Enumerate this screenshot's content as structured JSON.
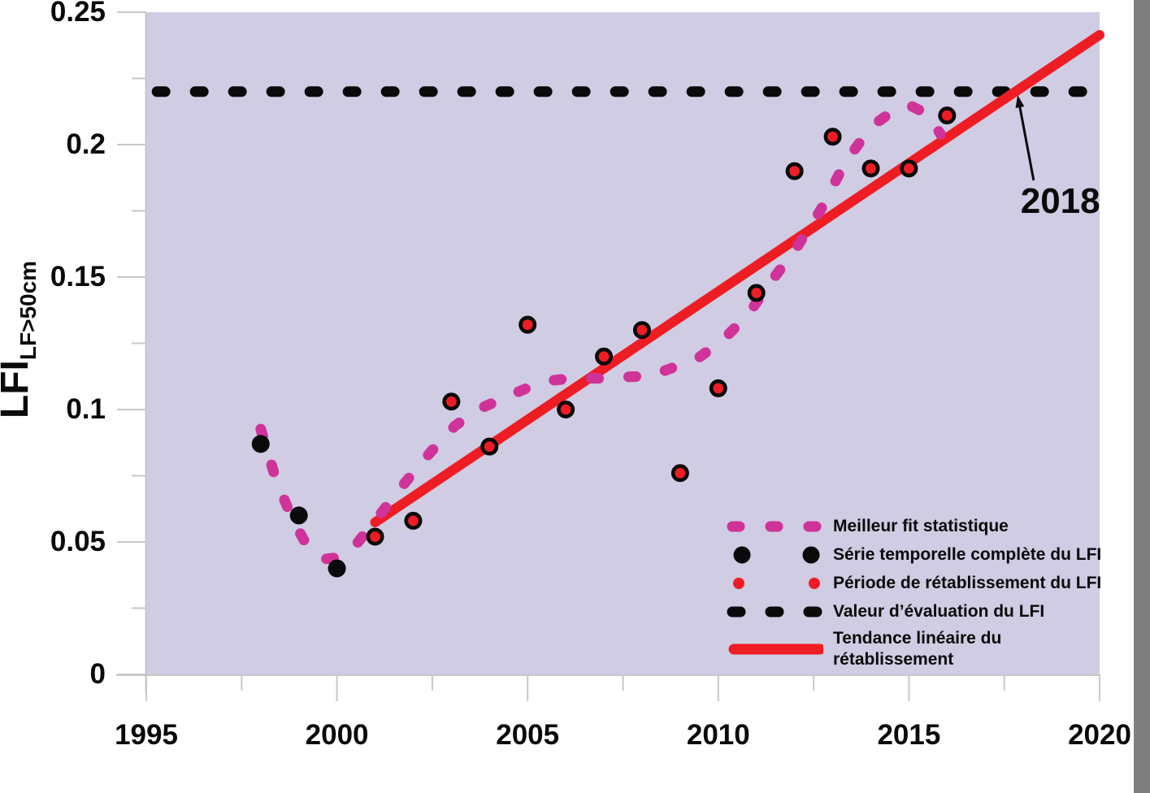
{
  "figure": {
    "background": "#FFFFFF",
    "plot_bg": "#CFCCE3",
    "axis_color": "#C9C7C7",
    "text_color": "#0A0A0A",
    "right_bar_color": "#7F7F7F",
    "accent_red": "#EE1D23",
    "accent_magenta": "#CF3399"
  },
  "legend": {
    "items": [
      {
        "label": "Meilleur fit statistique",
        "marker": "dashed-line",
        "color": "#CF3399"
      },
      {
        "label": "Série temporelle complète du LFI",
        "marker": "large-dots",
        "color": "#0A0A0A"
      },
      {
        "label": "Période de rétablissement du LFI",
        "marker": "small-dots",
        "color": "#EE1D23"
      },
      {
        "label": "Valeur d’évaluation du LFI",
        "marker": "dashed-line",
        "color": "#0A0A0A"
      },
      {
        "label": "Tendance linéaire du rétablissement",
        "line1": "Tendance linéaire du",
        "line2": "rétablissement",
        "marker": "solid-line",
        "color": "#EE1D23"
      }
    ]
  },
  "chart_data": {
    "type": "scatter",
    "title": "",
    "xlabel": "",
    "ylabel": "LFI LF>50cm",
    "grid": false,
    "legend_position": "inside-lower-right",
    "x_axis": {
      "range": [
        1995,
        2020
      ],
      "ticks": [
        {
          "label": "1995",
          "value": 1995
        },
        {
          "label": "2000",
          "value": 2000
        },
        {
          "label": "2005",
          "value": 2005
        },
        {
          "label": "2010",
          "value": 2010
        },
        {
          "label": "2015",
          "value": 2015
        },
        {
          "label": "2020",
          "value": 2020
        }
      ],
      "minor_ticks": [
        1997.5,
        2002.5,
        2007.5,
        2012.5,
        2017.5
      ]
    },
    "y_axis": {
      "title": "LFI",
      "subscript": "LF>50cm",
      "range": [
        0,
        0.25
      ],
      "ticks": [
        {
          "label": "0",
          "value": 0
        },
        {
          "label": "0.05",
          "value": 0.05
        },
        {
          "label": "0.1",
          "value": 0.1
        },
        {
          "label": "0.15",
          "value": 0.15
        },
        {
          "label": "0.2",
          "value": 0.2
        },
        {
          "label": "0.25",
          "value": 0.25
        }
      ],
      "minor_ticks": [
        0.025,
        0.075,
        0.125,
        0.175,
        0.225
      ]
    },
    "series": [
      {
        "name": "Série temporelle complète du LFI",
        "type": "scatter",
        "marker": "filled-circle",
        "color": "#0A0A0A",
        "x": [
          1998,
          1999,
          2000
        ],
        "y": [
          0.087,
          0.06,
          0.04
        ]
      },
      {
        "name": "Période de rétablissement du LFI",
        "type": "scatter",
        "marker": "ringed-circle",
        "color": "#EE1D23",
        "ring_color": "#0A0A0A",
        "x": [
          2001,
          2002,
          2003,
          2004,
          2005,
          2006,
          2007,
          2008,
          2009,
          2010,
          2011,
          2012,
          2013,
          2014,
          2015,
          2016
        ],
        "y": [
          0.052,
          0.058,
          0.103,
          0.086,
          0.132,
          0.1,
          0.12,
          0.13,
          0.076,
          0.108,
          0.144,
          0.19,
          0.203,
          0.191,
          0.191,
          0.211
        ]
      },
      {
        "name": "Meilleur fit statistique",
        "type": "dashed-curve",
        "color": "#CF3399",
        "points": [
          [
            1998.0,
            0.0926
          ],
          [
            1998.4,
            0.0736
          ],
          [
            1998.84,
            0.0583
          ],
          [
            1999.22,
            0.0485
          ],
          [
            1999.7,
            0.0436
          ],
          [
            2000.12,
            0.0442
          ],
          [
            2000.54,
            0.0497
          ],
          [
            2001.18,
            0.0613
          ],
          [
            2001.82,
            0.073
          ],
          [
            2002.46,
            0.084
          ],
          [
            2003.1,
            0.0939
          ],
          [
            2003.74,
            0.1003
          ],
          [
            2004.38,
            0.1043
          ],
          [
            2005.02,
            0.1083
          ],
          [
            2005.66,
            0.111
          ],
          [
            2006.3,
            0.112
          ],
          [
            2006.94,
            0.1117
          ],
          [
            2007.58,
            0.1123
          ],
          [
            2008.21,
            0.1126
          ],
          [
            2008.85,
            0.116
          ],
          [
            2009.49,
            0.1196
          ],
          [
            2010.13,
            0.1264
          ],
          [
            2010.77,
            0.1356
          ],
          [
            2011.41,
            0.1488
          ],
          [
            2012.05,
            0.161
          ],
          [
            2012.69,
            0.1755
          ],
          [
            2013.33,
            0.1933
          ],
          [
            2013.76,
            0.2018
          ],
          [
            2014.18,
            0.2086
          ],
          [
            2014.61,
            0.2129
          ],
          [
            2015.04,
            0.2147
          ],
          [
            2015.46,
            0.2117
          ],
          [
            2015.83,
            0.204
          ]
        ]
      },
      {
        "name": "Tendance linéaire du rétablissement",
        "type": "line",
        "color": "#EE1D23",
        "points": [
          [
            2001.0,
            0.0574
          ],
          [
            2020.0,
            0.2414
          ]
        ]
      },
      {
        "name": "Valeur d’évaluation du LFI",
        "type": "dashed-hline",
        "color": "#0A0A0A",
        "value": 0.22,
        "year_start": 1995.28,
        "year_end": 2019.85
      }
    ],
    "annotation": {
      "label": "2018",
      "head": {
        "year": 2017.91,
        "value": 0.2141
      },
      "tail": {
        "year": 2018.27,
        "value": 0.1865
      },
      "label_pos": {
        "year": 2018.97,
        "value": 0.1785
      }
    }
  }
}
